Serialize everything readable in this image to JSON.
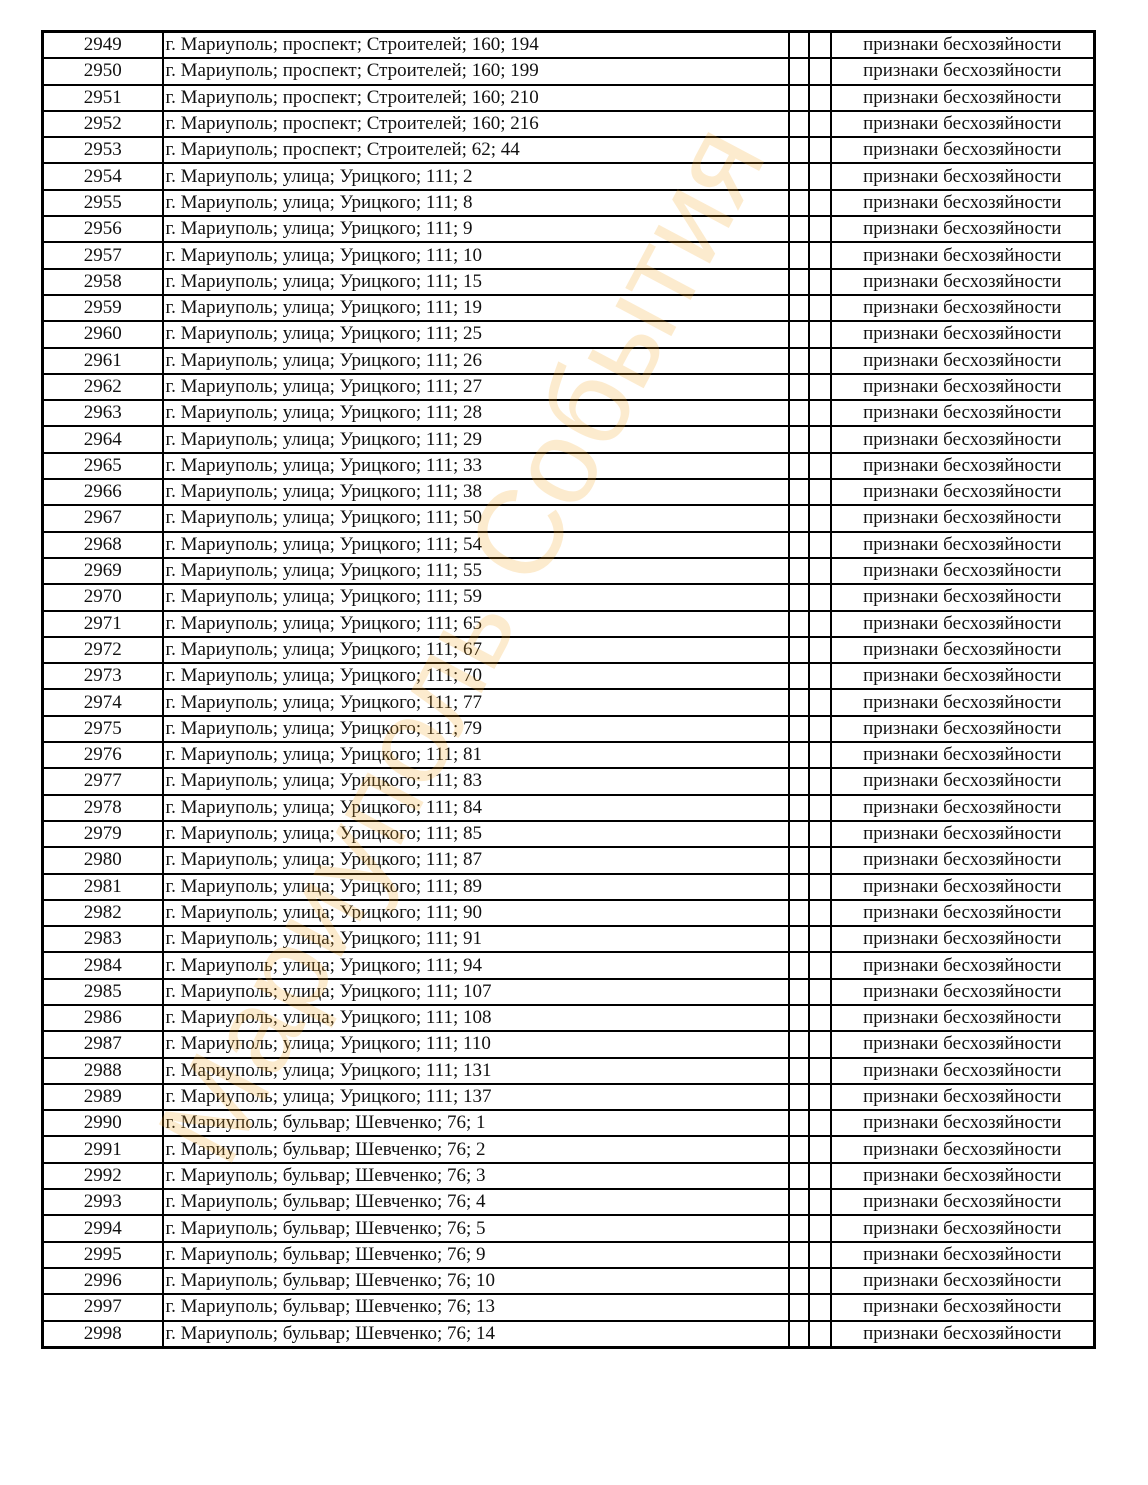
{
  "watermark": {
    "text": "Мариуполь События",
    "color": "#f5a623"
  },
  "table": {
    "status_text": "признаки бесхозяйности",
    "rows": [
      {
        "no": "2949",
        "address": "г. Мариуполь; проспект; Строителей; 160; 194"
      },
      {
        "no": "2950",
        "address": "г. Мариуполь; проспект; Строителей; 160; 199"
      },
      {
        "no": "2951",
        "address": "г. Мариуполь; проспект; Строителей; 160; 210"
      },
      {
        "no": "2952",
        "address": "г. Мариуполь; проспект; Строителей; 160; 216"
      },
      {
        "no": "2953",
        "address": "г. Мариуполь; проспект; Строителей; 62; 44"
      },
      {
        "no": "2954",
        "address": "г. Мариуполь; улица; Урицкого; 111; 2"
      },
      {
        "no": "2955",
        "address": "г. Мариуполь; улица; Урицкого; 111; 8"
      },
      {
        "no": "2956",
        "address": "г. Мариуполь; улица; Урицкого; 111; 9"
      },
      {
        "no": "2957",
        "address": "г. Мариуполь; улица; Урицкого; 111; 10"
      },
      {
        "no": "2958",
        "address": "г. Мариуполь; улица; Урицкого; 111; 15"
      },
      {
        "no": "2959",
        "address": "г. Мариуполь; улица; Урицкого; 111; 19"
      },
      {
        "no": "2960",
        "address": "г. Мариуполь; улица; Урицкого; 111; 25"
      },
      {
        "no": "2961",
        "address": "г. Мариуполь; улица; Урицкого; 111; 26"
      },
      {
        "no": "2962",
        "address": "г. Мариуполь; улица; Урицкого; 111; 27"
      },
      {
        "no": "2963",
        "address": "г. Мариуполь; улица; Урицкого; 111; 28"
      },
      {
        "no": "2964",
        "address": "г. Мариуполь; улица; Урицкого; 111; 29"
      },
      {
        "no": "2965",
        "address": "г. Мариуполь; улица; Урицкого; 111; 33"
      },
      {
        "no": "2966",
        "address": "г. Мариуполь; улица; Урицкого; 111; 38"
      },
      {
        "no": "2967",
        "address": "г. Мариуполь; улица; Урицкого; 111; 50"
      },
      {
        "no": "2968",
        "address": "г. Мариуполь; улица; Урицкого; 111; 54"
      },
      {
        "no": "2969",
        "address": "г. Мариуполь; улица; Урицкого; 111; 55"
      },
      {
        "no": "2970",
        "address": "г. Мариуполь; улица; Урицкого; 111; 59"
      },
      {
        "no": "2971",
        "address": "г. Мариуполь; улица; Урицкого; 111; 65"
      },
      {
        "no": "2972",
        "address": "г. Мариуполь; улица; Урицкого; 111; 67"
      },
      {
        "no": "2973",
        "address": "г. Мариуполь; улица; Урицкого; 111; 70"
      },
      {
        "no": "2974",
        "address": "г. Мариуполь; улица; Урицкого; 111; 77"
      },
      {
        "no": "2975",
        "address": "г. Мариуполь; улица; Урицкого; 111; 79"
      },
      {
        "no": "2976",
        "address": "г. Мариуполь; улица; Урицкого; 111; 81"
      },
      {
        "no": "2977",
        "address": "г. Мариуполь; улица; Урицкого; 111; 83"
      },
      {
        "no": "2978",
        "address": "г. Мариуполь; улица; Урицкого; 111; 84"
      },
      {
        "no": "2979",
        "address": "г. Мариуполь; улица; Урицкого; 111; 85"
      },
      {
        "no": "2980",
        "address": "г. Мариуполь; улица; Урицкого; 111; 87"
      },
      {
        "no": "2981",
        "address": "г. Мариуполь; улица; Урицкого; 111; 89"
      },
      {
        "no": "2982",
        "address": "г. Мариуполь; улица; Урицкого; 111; 90"
      },
      {
        "no": "2983",
        "address": "г. Мариуполь; улица; Урицкого; 111; 91"
      },
      {
        "no": "2984",
        "address": "г. Мариуполь; улица; Урицкого; 111; 94"
      },
      {
        "no": "2985",
        "address": "г. Мариуполь; улица; Урицкого; 111; 107"
      },
      {
        "no": "2986",
        "address": "г. Мариуполь; улица; Урицкого; 111; 108"
      },
      {
        "no": "2987",
        "address": "г. Мариуполь; улица; Урицкого; 111; 110"
      },
      {
        "no": "2988",
        "address": "г. Мариуполь; улица; Урицкого; 111; 131"
      },
      {
        "no": "2989",
        "address": "г. Мариуполь; улица; Урицкого; 111; 137"
      },
      {
        "no": "2990",
        "address": "г. Мариуполь; бульвар; Шевченко; 76; 1"
      },
      {
        "no": "2991",
        "address": "г. Мариуполь; бульвар; Шевченко; 76; 2"
      },
      {
        "no": "2992",
        "address": "г. Мариуполь; бульвар; Шевченко; 76; 3"
      },
      {
        "no": "2993",
        "address": "г. Мариуполь; бульвар; Шевченко; 76; 4"
      },
      {
        "no": "2994",
        "address": "г. Мариуполь; бульвар; Шевченко; 76; 5"
      },
      {
        "no": "2995",
        "address": "г. Мариуполь; бульвар; Шевченко; 76; 9"
      },
      {
        "no": "2996",
        "address": "г. Мариуполь; бульвар; Шевченко; 76; 10"
      },
      {
        "no": "2997",
        "address": "г. Мариуполь; бульвар; Шевченко; 76; 13"
      },
      {
        "no": "2998",
        "address": "г. Мариуполь; бульвар; Шевченко; 76; 14"
      }
    ]
  }
}
